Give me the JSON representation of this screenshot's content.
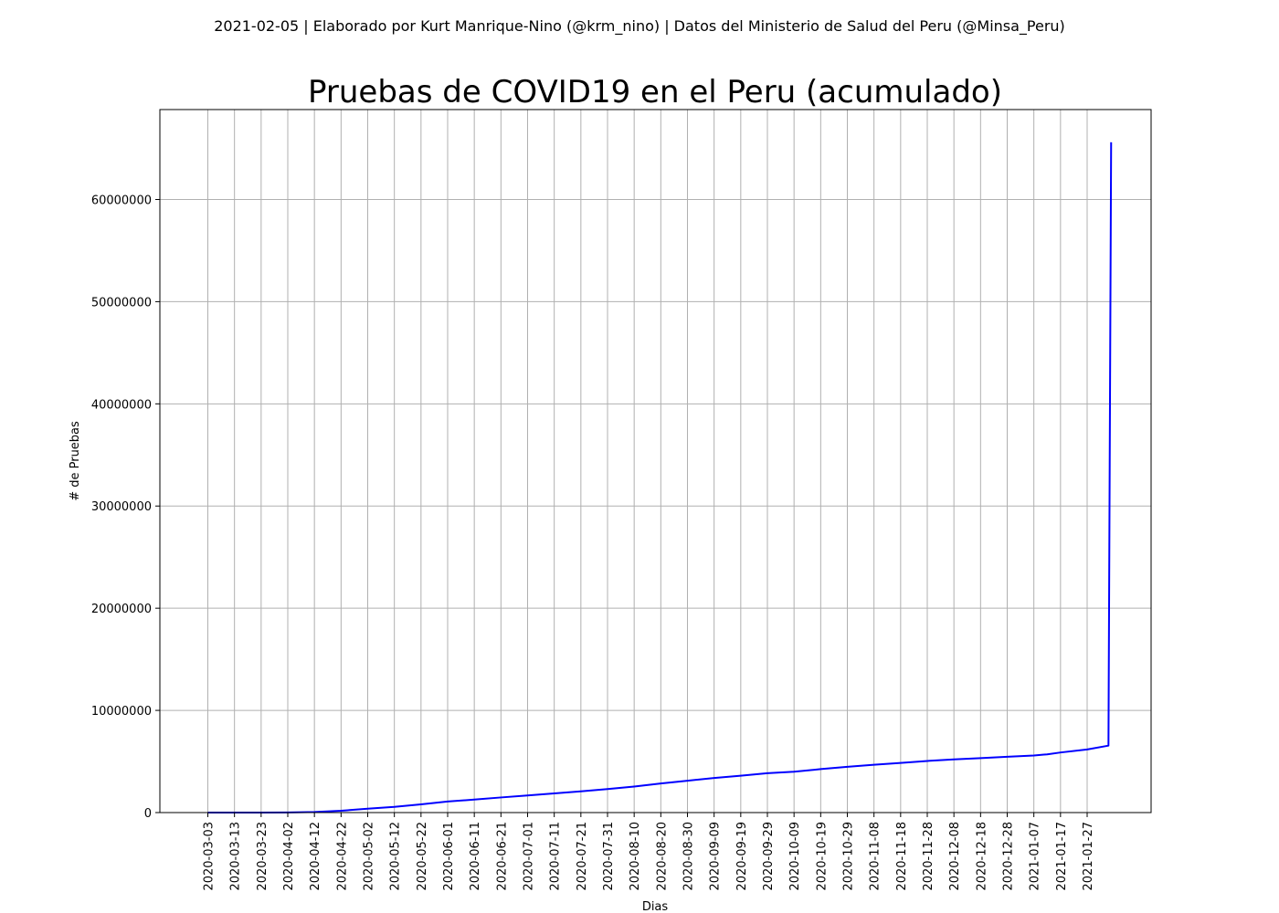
{
  "header": {
    "suptitle": "2021-02-05 | Elaborado por Kurt Manrique-Nino (@krm_nino) | Datos del Ministerio de Salud del Peru (@Minsa_Peru)"
  },
  "chart_data": {
    "type": "line",
    "title": "Pruebas de COVID19 en el Peru (acumulado)",
    "xlabel": "Dias",
    "ylabel": "# de Pruebas",
    "x_start": "2020-03-03",
    "x_end": "2021-02-05",
    "xlim": [
      "2020-02-14",
      "2021-02-20"
    ],
    "ylim": [
      0,
      68800000
    ],
    "grid": true,
    "line_color": "#0000ff",
    "x_ticks": [
      "2020-03-03",
      "2020-03-13",
      "2020-03-23",
      "2020-04-02",
      "2020-04-12",
      "2020-04-22",
      "2020-05-02",
      "2020-05-12",
      "2020-05-22",
      "2020-06-01",
      "2020-06-11",
      "2020-06-21",
      "2020-07-01",
      "2020-07-11",
      "2020-07-21",
      "2020-07-31",
      "2020-08-10",
      "2020-08-20",
      "2020-08-30",
      "2020-09-09",
      "2020-09-19",
      "2020-09-29",
      "2020-10-09",
      "2020-10-19",
      "2020-10-29",
      "2020-11-08",
      "2020-11-18",
      "2020-11-28",
      "2020-12-08",
      "2020-12-18",
      "2020-12-28",
      "2021-01-07",
      "2021-01-17",
      "2021-01-27"
    ],
    "y_ticks": [
      {
        "value": 0,
        "label": "0"
      },
      {
        "value": 10000000,
        "label": "10000000"
      },
      {
        "value": 20000000,
        "label": "20000000"
      },
      {
        "value": 30000000,
        "label": "30000000"
      },
      {
        "value": 40000000,
        "label": "40000000"
      },
      {
        "value": 50000000,
        "label": "50000000"
      },
      {
        "value": 60000000,
        "label": "60000000"
      }
    ],
    "series": [
      {
        "points": [
          [
            "2020-03-03",
            0
          ],
          [
            "2020-03-23",
            2000
          ],
          [
            "2020-04-02",
            10000
          ],
          [
            "2020-04-12",
            60000
          ],
          [
            "2020-04-22",
            180000
          ],
          [
            "2020-05-02",
            380000
          ],
          [
            "2020-05-12",
            560000
          ],
          [
            "2020-05-22",
            800000
          ],
          [
            "2020-06-01",
            1080000
          ],
          [
            "2020-06-11",
            1270000
          ],
          [
            "2020-06-21",
            1480000
          ],
          [
            "2020-07-01",
            1680000
          ],
          [
            "2020-07-11",
            1880000
          ],
          [
            "2020-07-21",
            2080000
          ],
          [
            "2020-07-31",
            2300000
          ],
          [
            "2020-08-10",
            2550000
          ],
          [
            "2020-08-20",
            2850000
          ],
          [
            "2020-08-30",
            3120000
          ],
          [
            "2020-09-09",
            3380000
          ],
          [
            "2020-09-19",
            3610000
          ],
          [
            "2020-09-29",
            3850000
          ],
          [
            "2020-10-09",
            4000000
          ],
          [
            "2020-10-19",
            4250000
          ],
          [
            "2020-10-29",
            4480000
          ],
          [
            "2020-11-08",
            4680000
          ],
          [
            "2020-11-18",
            4860000
          ],
          [
            "2020-11-28",
            5050000
          ],
          [
            "2020-12-08",
            5200000
          ],
          [
            "2020-12-18",
            5330000
          ],
          [
            "2020-12-28",
            5460000
          ],
          [
            "2021-01-07",
            5580000
          ],
          [
            "2021-01-12",
            5700000
          ],
          [
            "2021-01-17",
            5880000
          ],
          [
            "2021-01-27",
            6180000
          ],
          [
            "2021-02-04",
            6550000
          ],
          [
            "2021-02-05",
            65600000
          ]
        ]
      }
    ]
  }
}
